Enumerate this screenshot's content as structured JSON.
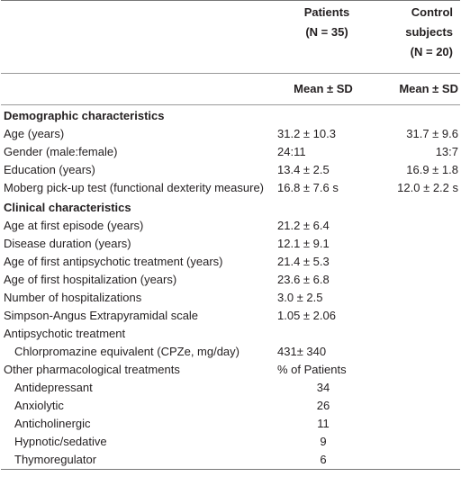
{
  "header": {
    "patients": [
      "Patients",
      "(N = 35)"
    ],
    "control": [
      "Control",
      "subjects",
      "(N = 20)"
    ],
    "stat": [
      "Mean ± SD",
      "Mean ± SD"
    ]
  },
  "sections": [
    {
      "title": "Demographic characteristics",
      "rows": [
        [
          "Age (years)",
          "31.2 ± 10.3",
          "31.7 ± 9.6"
        ],
        [
          "Gender (male:female)",
          "24:11",
          "13:7"
        ],
        [
          "Education (years)",
          "13.4 ± 2.5",
          "16.9 ± 1.8"
        ],
        [
          "Moberg pick-up test (functional dexterity measure)",
          "16.8 ± 7.6 s",
          "12.0 ± 2.2 s"
        ]
      ]
    },
    {
      "title": "Clinical characteristics",
      "rows": [
        [
          "Age at first episode (years)",
          "21.2 ± 6.4"
        ],
        [
          "Disease duration (years)",
          "12.1 ± 9.1"
        ],
        [
          "Age of first antipsychotic treatment (years)",
          "21.4 ± 5.3"
        ],
        [
          "Age of first hospitalization (years)",
          "23.6 ± 6.8"
        ],
        [
          "Number of hospitalizations",
          "3.0 ± 2.5"
        ],
        [
          "Simpson-Angus Extrapyramidal scale",
          "1.05 ± 2.06"
        ],
        [
          "Antipsychotic treatment"
        ],
        [
          "Chlorpromazine equivalent (CPZe, mg/day)",
          "431± 340"
        ],
        [
          "Other pharmacological treatments",
          "% of Patients"
        ],
        [
          "Antidepressant",
          "34"
        ],
        [
          "Anxiolytic",
          "26"
        ],
        [
          "Anticholinergic",
          "11"
        ],
        [
          "Hypnotic/sedative",
          "9"
        ],
        [
          "Thymoregulator",
          "6"
        ]
      ]
    }
  ]
}
